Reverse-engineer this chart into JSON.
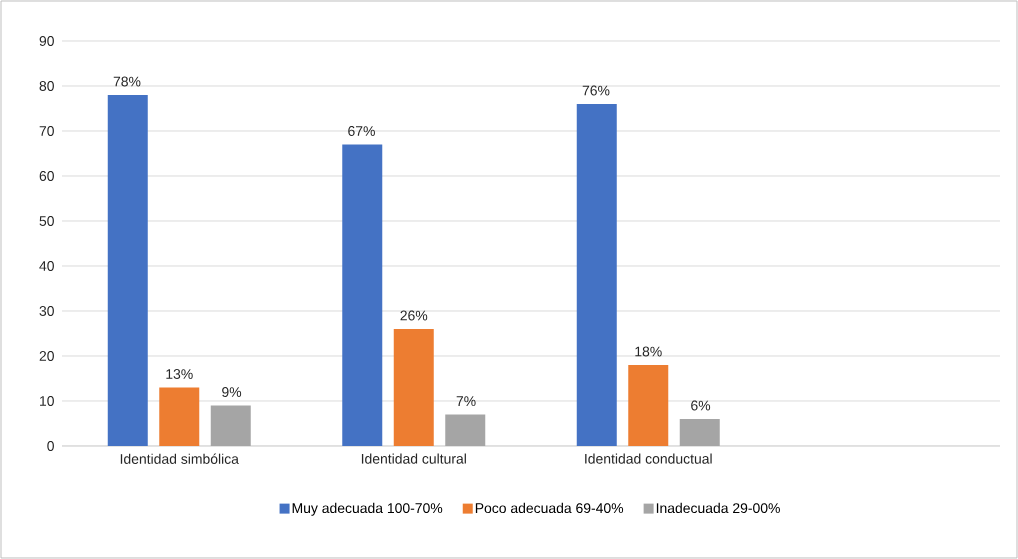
{
  "chart_data": {
    "type": "bar",
    "categories": [
      "Identidad simbólica",
      "Identidad cultural",
      "Identidad conductual",
      null
    ],
    "series": [
      {
        "name": "Muy adecuada 100-70%",
        "color": "#4472c4",
        "values": [
          78,
          67,
          76,
          null
        ],
        "value_labels": [
          "78%",
          "67%",
          "76%",
          null
        ]
      },
      {
        "name": "Poco adecuada 69-40%",
        "color": "#ed7d31",
        "values": [
          13,
          26,
          18,
          null
        ],
        "value_labels": [
          "13%",
          "26%",
          "18%",
          null
        ]
      },
      {
        "name": "Inadecuada 29-00%",
        "color": "#a5a5a5",
        "values": [
          9,
          7,
          6,
          null
        ],
        "value_labels": [
          "9%",
          "7%",
          "6%",
          null
        ]
      }
    ],
    "ylim": [
      0,
      90
    ],
    "yticks": [
      0,
      10,
      20,
      30,
      40,
      50,
      60,
      70,
      80,
      90
    ],
    "grid": "y",
    "legend": "bottom"
  }
}
